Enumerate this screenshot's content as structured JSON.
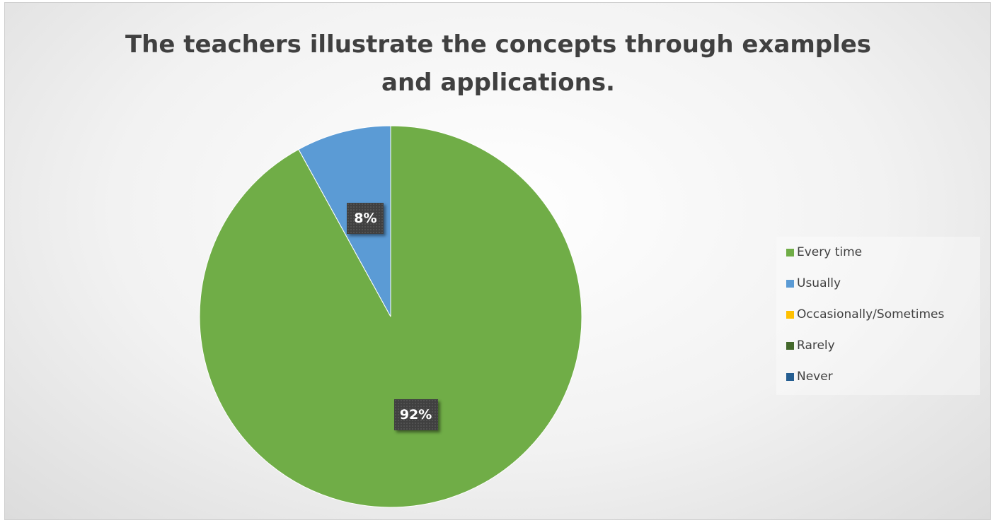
{
  "chart_data": {
    "type": "pie",
    "title": "The teachers illustrate the concepts through examples and applications.",
    "title_lines": [
      "The teachers illustrate the concepts through examples",
      "and applications."
    ],
    "categories": [
      "Every time",
      "Usually",
      "Occasionally/Sometimes",
      "Rarely",
      "Never"
    ],
    "values": [
      92,
      8,
      0,
      0,
      0
    ],
    "data_labels": [
      "92%",
      "8%",
      "",
      "",
      ""
    ],
    "colors": [
      "#70AD47",
      "#5B9BD5",
      "#FFC000",
      "#43682B",
      "#255E91"
    ],
    "legend_position": "right",
    "start_angle": "12 o'clock, clockwise"
  }
}
